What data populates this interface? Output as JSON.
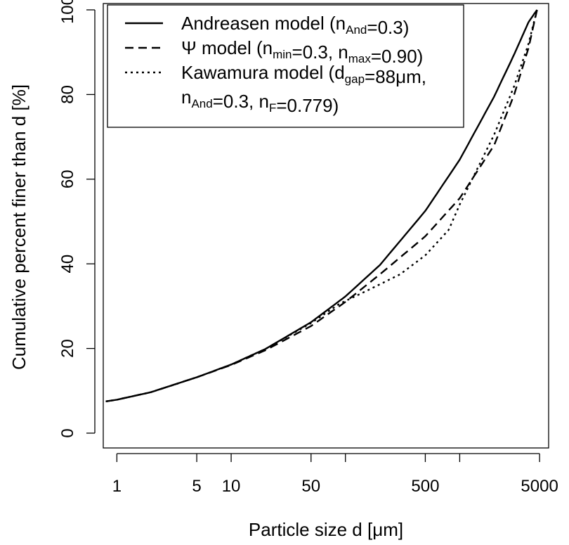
{
  "chart_data": {
    "type": "line",
    "xlabel": "Particle size d [μm]",
    "ylabel": "Cumulative percent finer than d [%]",
    "x_scale": "log",
    "xlim": [
      0.76,
      6000
    ],
    "ylim": [
      -3.5,
      101.5
    ],
    "x_ticks": [
      1,
      5,
      10,
      50,
      100,
      500,
      1000,
      5000
    ],
    "x_tick_labels": [
      "1",
      "5",
      "10",
      "50",
      "",
      "500",
      "",
      "5000"
    ],
    "y_ticks": [
      0,
      20,
      40,
      60,
      80,
      100
    ],
    "y_tick_labels": [
      "0",
      "20",
      "40",
      "60",
      "80",
      "100"
    ],
    "grid": false,
    "legend_position": "top-left",
    "series": [
      {
        "name": "Andreasen model (nAnd=0.3)",
        "style": "solid",
        "x": [
          0.8,
          1,
          2,
          5,
          10,
          20,
          50,
          100,
          200,
          500,
          1000,
          2000,
          3000,
          4000,
          4750
        ],
        "y": [
          7.5,
          7.9,
          9.7,
          13.2,
          16.2,
          19.9,
          26.2,
          32.3,
          39.7,
          52.5,
          64.6,
          79.5,
          89.5,
          97.1,
          100
        ]
      },
      {
        "name": "Ψ model (nmin=0.3, nmax=0.90)",
        "style": "dashed",
        "x": [
          0.8,
          1,
          2,
          5,
          10,
          20,
          50,
          100,
          200,
          500,
          1000,
          2000,
          3000,
          4000,
          4750
        ],
        "y": [
          7.5,
          7.9,
          9.7,
          13.2,
          16.1,
          19.6,
          25.3,
          31.0,
          37.5,
          46.5,
          55.5,
          68.0,
          80.0,
          91.0,
          100
        ]
      },
      {
        "name": "Kawamura model (dgap=88μm, nAnd=0.3, nF=0.779)",
        "style": "dotted",
        "x": [
          0.8,
          1,
          2,
          5,
          10,
          20,
          50,
          88,
          150,
          300,
          500,
          800,
          1000,
          2000,
          3000,
          4000,
          4750
        ],
        "y": [
          7.5,
          7.9,
          9.7,
          13.2,
          16.2,
          19.9,
          26.0,
          30.5,
          33.5,
          37.5,
          42.0,
          48.0,
          54.0,
          70.5,
          82.0,
          92.0,
          100
        ]
      }
    ],
    "legend": [
      {
        "style": "solid",
        "lines": [
          [
            {
              "t": "Andreasen model (n"
            },
            {
              "t": "And",
              "sub": true
            },
            {
              "t": "=0.3)"
            }
          ]
        ]
      },
      {
        "style": "dashed",
        "lines": [
          [
            {
              "t": "Ψ model (n"
            },
            {
              "t": "min",
              "sub": true
            },
            {
              "t": "=0.3, n"
            },
            {
              "t": "max",
              "sub": true
            },
            {
              "t": "=0.90)"
            }
          ]
        ]
      },
      {
        "style": "dotted",
        "lines": [
          [
            {
              "t": "Kawamura model (d"
            },
            {
              "t": "gap",
              "sub": true
            },
            {
              "t": "=88μm,"
            }
          ],
          [
            {
              "t": "n"
            },
            {
              "t": "And",
              "sub": true
            },
            {
              "t": "=0.3, n"
            },
            {
              "t": "F",
              "sub": true
            },
            {
              "t": "=0.779)"
            }
          ]
        ]
      }
    ]
  }
}
